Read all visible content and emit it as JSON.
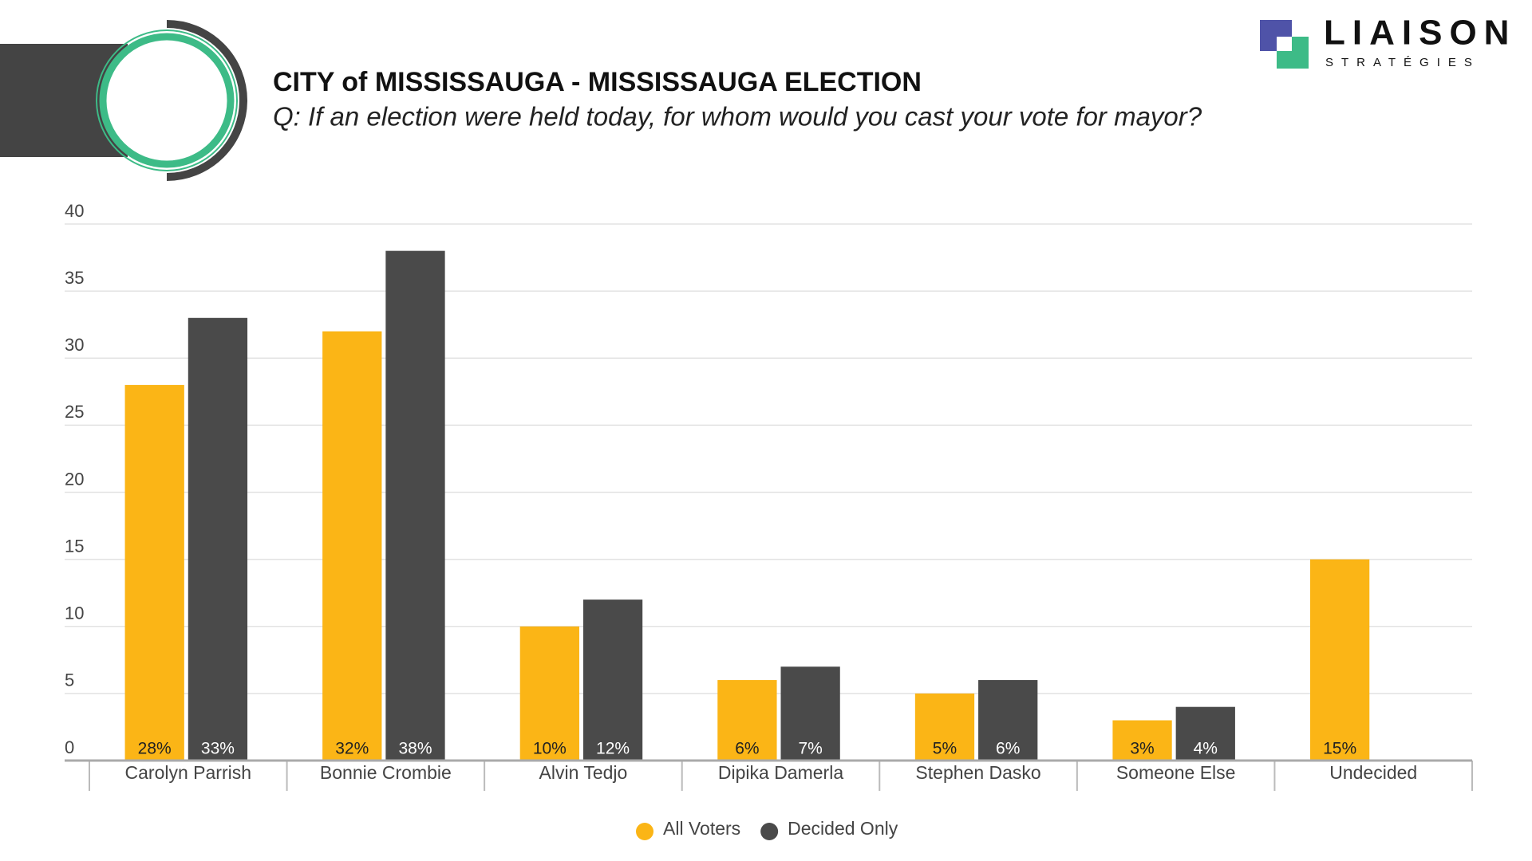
{
  "brand": {
    "name": "LIAISON",
    "tagline": "STRATÉGIES"
  },
  "chart_data": {
    "type": "bar",
    "title": "CITY of MISSISSAUGA - MISSISSAUGA ELECTION",
    "subtitle": "Q: If an election were held today, for whom would you cast your vote for mayor?",
    "categories": [
      "Carolyn Parrish",
      "Bonnie Crombie",
      "Alvin Tedjo",
      "Dipika Damerla",
      "Stephen Dasko",
      "Someone Else",
      "Undecided"
    ],
    "series": [
      {
        "name": "All Voters",
        "color": "#fbb516",
        "values": [
          28,
          32,
          10,
          6,
          5,
          3,
          15
        ],
        "value_labels": [
          "28%",
          "32%",
          "10%",
          "6%",
          "5%",
          "3%",
          "15%"
        ]
      },
      {
        "name": "Decided Only",
        "color": "#4a4a4a",
        "values": [
          33,
          38,
          12,
          7,
          6,
          4,
          null
        ],
        "value_labels": [
          "33%",
          "38%",
          "12%",
          "7%",
          "6%",
          "4%",
          null
        ]
      }
    ],
    "ylim": [
      0,
      40
    ],
    "yticks": [
      0,
      5,
      10,
      15,
      20,
      25,
      30,
      35,
      40
    ],
    "grid": true,
    "legend": "bottom"
  }
}
